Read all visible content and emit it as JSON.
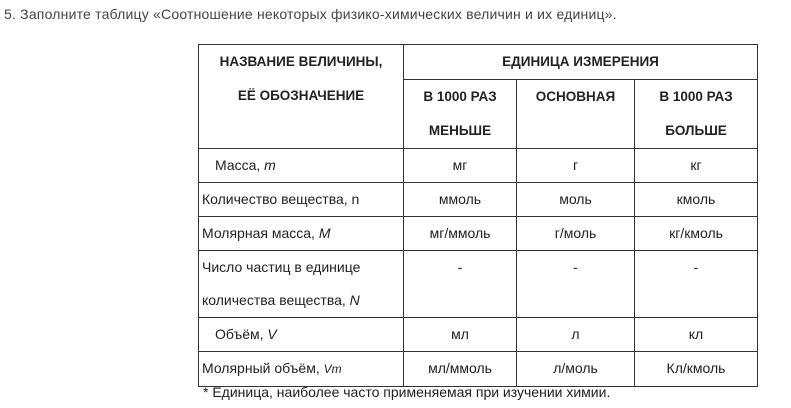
{
  "task": "5. Заполните таблицу «Соотношение некоторых физико-химических величин и их единиц».",
  "table": {
    "header": {
      "name_line1": "НАЗВАНИЕ ВЕЛИЧИНЫ,",
      "name_line2": "ЕЁ ОБОЗНАЧЕНИЕ",
      "unit": "ЕДИНИЦА ИЗМЕРЕНИЯ",
      "smaller_line1": "В 1000 РАЗ",
      "smaller_line2": "МЕНЬШЕ",
      "base": "ОСНОВНАЯ",
      "larger_line1": "В 1000 РАЗ",
      "larger_line2": "БОЛЬШЕ"
    },
    "rows": [
      {
        "name": "Масса, ",
        "symbol": "m",
        "smaller": "мг",
        "base": "г",
        "larger": "кг"
      },
      {
        "name": "Количество вещества, n",
        "symbol": "",
        "smaller": "ммоль",
        "base": "моль",
        "larger": "кмоль"
      },
      {
        "name": "Молярная масса, ",
        "symbol": "M",
        "smaller": "мг/ммоль",
        "base": "г/моль",
        "larger": "кг/кмоль"
      },
      {
        "name_line1": "Число частиц в единице",
        "name": "количества вещества, ",
        "symbol": "N",
        "smaller": "-",
        "base": "-",
        "larger": "-"
      },
      {
        "name": "Объём, ",
        "symbol": "V",
        "smaller": "мл",
        "base": "л",
        "larger": "кл"
      },
      {
        "name": "Молярный объём, ",
        "symbol": "Vm",
        "smaller": "мл/ммоль",
        "base": "л/моль",
        "larger": "Кл/кмоль"
      }
    ]
  },
  "footnote": "* Единица, наиболее часто применяемая при изучении химии."
}
